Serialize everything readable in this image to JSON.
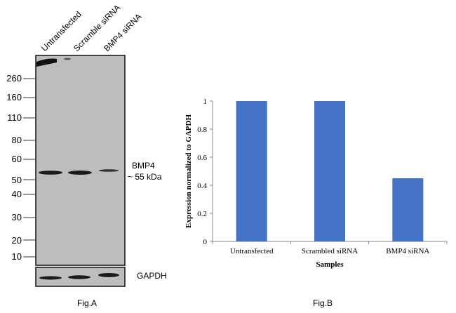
{
  "figA": {
    "caption": "Fig.A",
    "lanes": [
      "Untransfected",
      "Scramble siRNA",
      "BMP4 siRNA"
    ],
    "markers": [
      "260",
      "160",
      "110",
      "80",
      "60",
      "50",
      "40",
      "30",
      "20",
      "10"
    ],
    "target_label": "BMP4",
    "target_size": "~ 55 kDa",
    "loading_label": "GAPDH"
  },
  "figB": {
    "caption": "Fig.B"
  },
  "chart_data": {
    "type": "bar",
    "title": "",
    "categories": [
      "Untransfected",
      "Scrambled siRNA",
      "BMP4 siRNA"
    ],
    "values": [
      1,
      1,
      0.45
    ],
    "xlabel": "Samples",
    "ylabel": "Expression normalized to GAPDH",
    "ylim": [
      0,
      1
    ],
    "yticks": [
      "0",
      "0.2",
      "0.4",
      "0.6",
      "0.8",
      "1"
    ],
    "grid": false,
    "bar_color": "#4472c4"
  }
}
